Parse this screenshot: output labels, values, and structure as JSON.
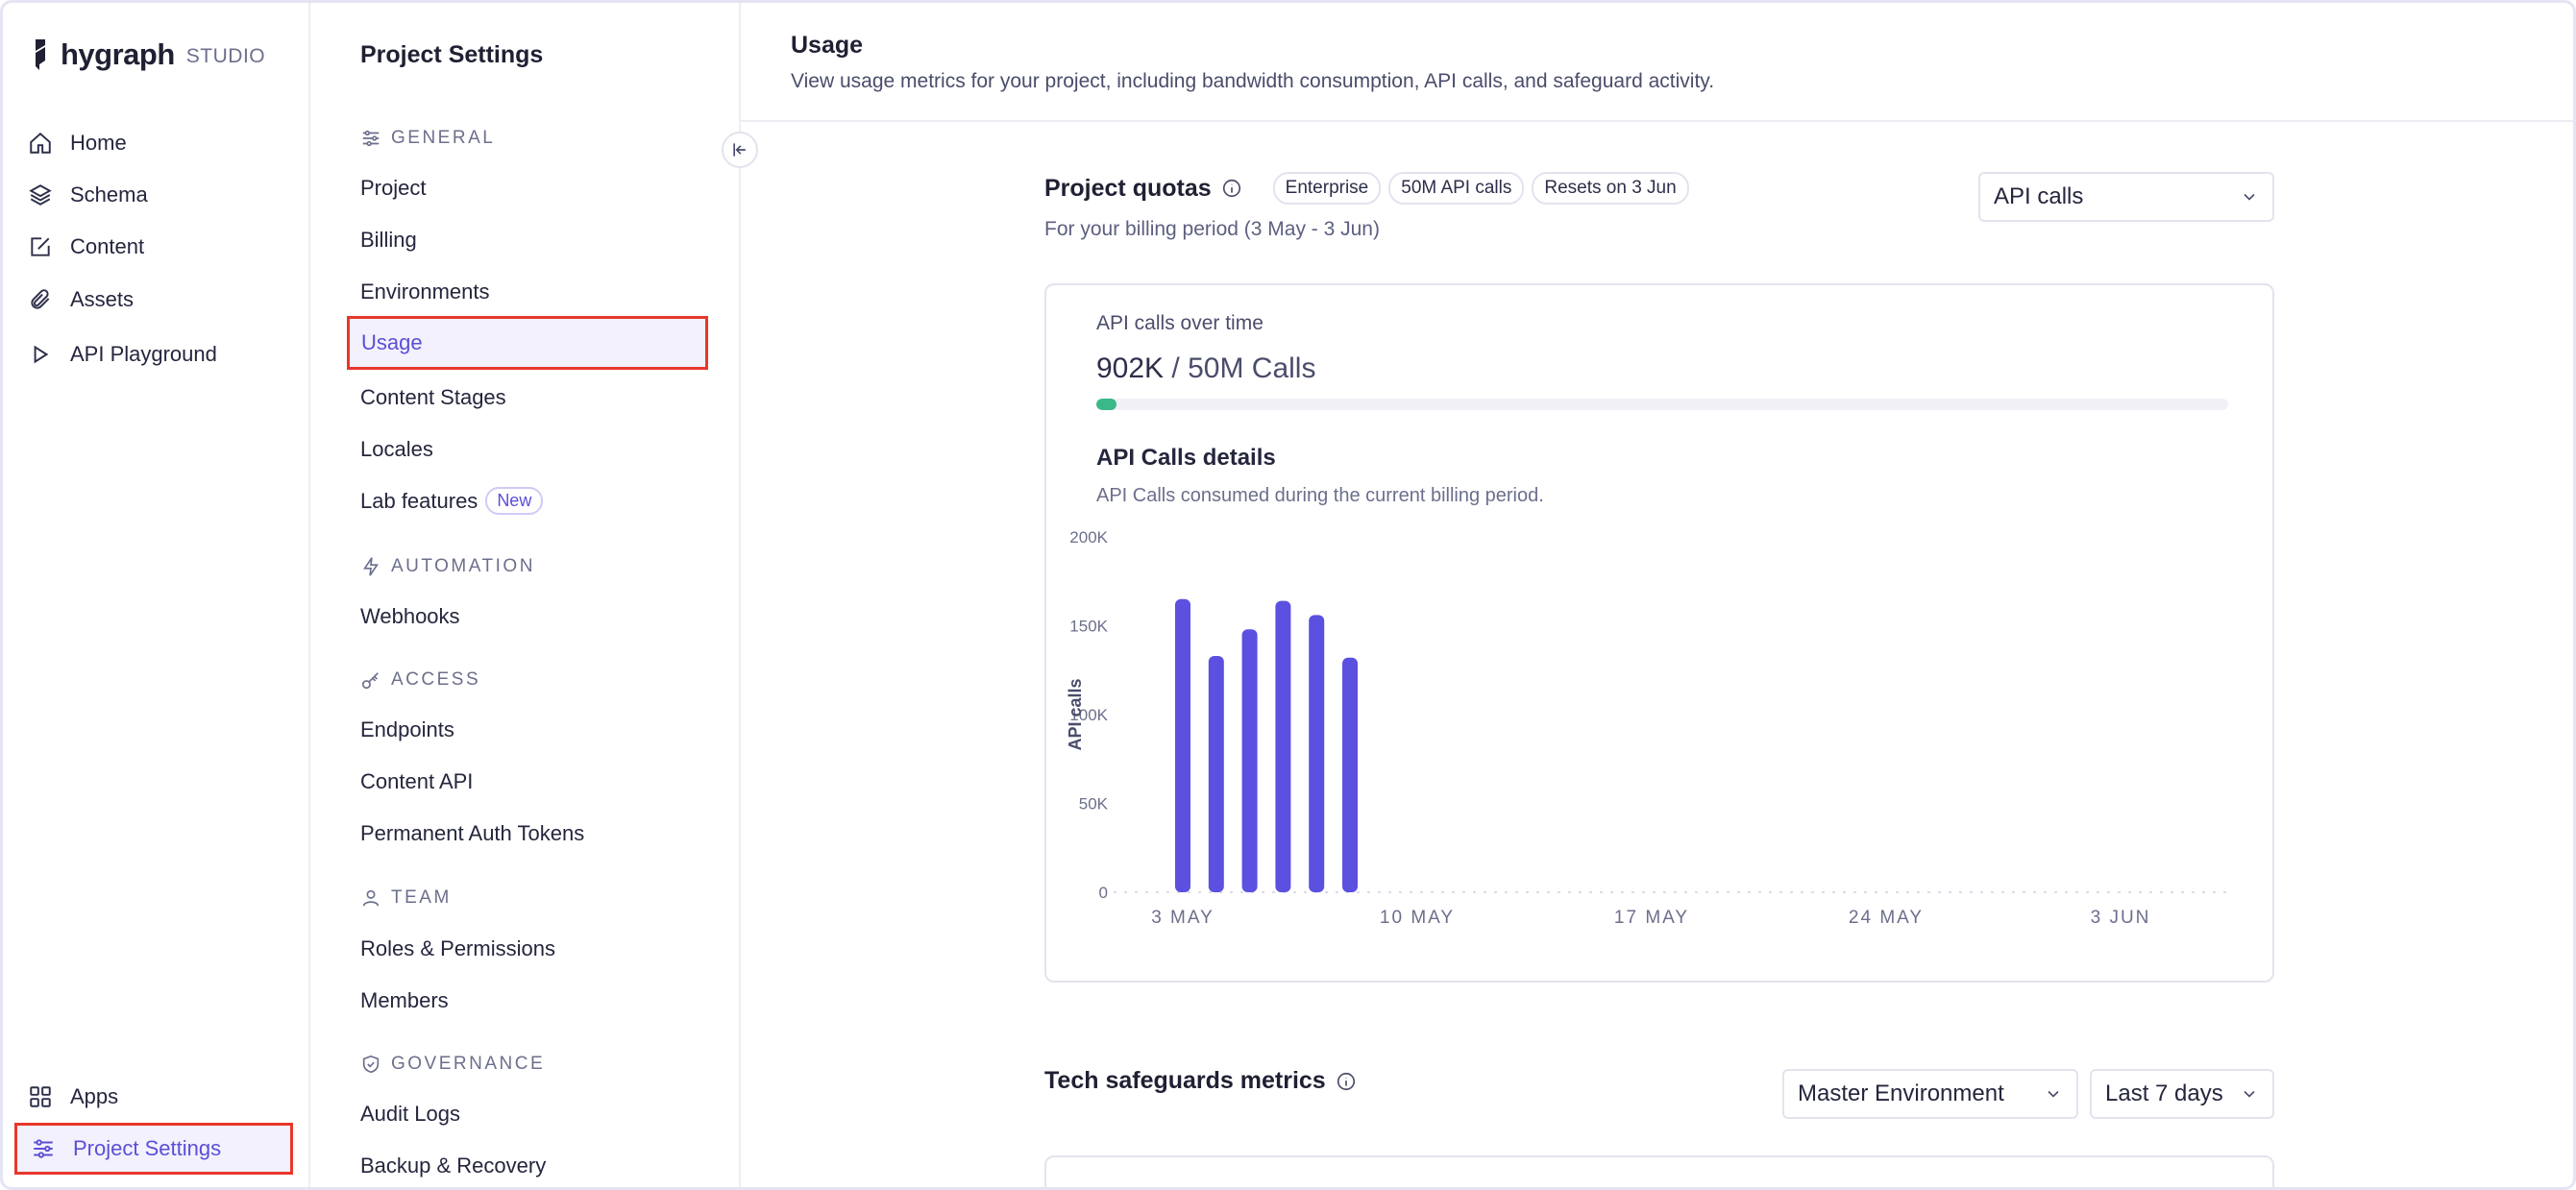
{
  "brand": {
    "name": "hygraph",
    "suffix": "STUDIO"
  },
  "rail": {
    "items": [
      {
        "label": "Home",
        "icon": "home-icon"
      },
      {
        "label": "Schema",
        "icon": "layers-icon"
      },
      {
        "label": "Content",
        "icon": "edit-icon"
      },
      {
        "label": "Assets",
        "icon": "paperclip-icon"
      },
      {
        "label": "API Playground",
        "icon": "play-icon"
      }
    ],
    "bottom": [
      {
        "label": "Apps",
        "icon": "grid-icon"
      },
      {
        "label": "Project Settings",
        "icon": "sliders-icon"
      }
    ]
  },
  "settings": {
    "title": "Project Settings",
    "sections": {
      "general": "GENERAL",
      "automation": "AUTOMATION",
      "access": "ACCESS",
      "team": "TEAM",
      "governance": "GOVERNANCE"
    },
    "items": {
      "project": "Project",
      "billing": "Billing",
      "environments": "Environments",
      "usage": "Usage",
      "content_stages": "Content Stages",
      "locales": "Locales",
      "lab_features": "Lab features",
      "lab_badge": "New",
      "webhooks": "Webhooks",
      "endpoints": "Endpoints",
      "content_api": "Content API",
      "pat": "Permanent Auth Tokens",
      "roles": "Roles & Permissions",
      "members": "Members",
      "audit_logs": "Audit Logs",
      "backup": "Backup & Recovery"
    }
  },
  "main": {
    "title": "Usage",
    "description": "View usage metrics for your project, including bandwidth consumption, API calls, and safeguard activity.",
    "quotas": {
      "title": "Project quotas",
      "pills": [
        "Enterprise",
        "50M API calls",
        "Resets on 3 Jun"
      ],
      "period": "For your billing period (3 May - 3 Jun)",
      "metric_select": "API calls"
    },
    "card": {
      "subtitle": "API calls over time",
      "used": "902K",
      "total": "/ 50M Calls",
      "progress_fraction": 0.018,
      "details_title": "API Calls details",
      "details_sub": "API Calls consumed during the current billing period."
    },
    "safeguards": {
      "title": "Tech safeguards metrics",
      "environment_select": "Master Environment",
      "range_select": "Last 7 days"
    }
  },
  "colors": {
    "accent": "#5b4fd6",
    "bar": "#5b50e0",
    "progress": "#3bb888",
    "highlight": "#e8372c"
  },
  "chart_data": {
    "type": "bar",
    "ylabel": "API calls",
    "ylim": [
      0,
      200000
    ],
    "yticks": [
      "0",
      "50K",
      "100K",
      "150K",
      "200K"
    ],
    "xticks": [
      "3 MAY",
      "10 MAY",
      "17 MAY",
      "24 MAY",
      "3 JUN"
    ],
    "x": [
      "3 May",
      "4 May",
      "5 May",
      "6 May",
      "7 May",
      "8 May"
    ],
    "values": [
      165000,
      133000,
      148000,
      164000,
      156000,
      132000
    ],
    "days_in_period": 32
  }
}
